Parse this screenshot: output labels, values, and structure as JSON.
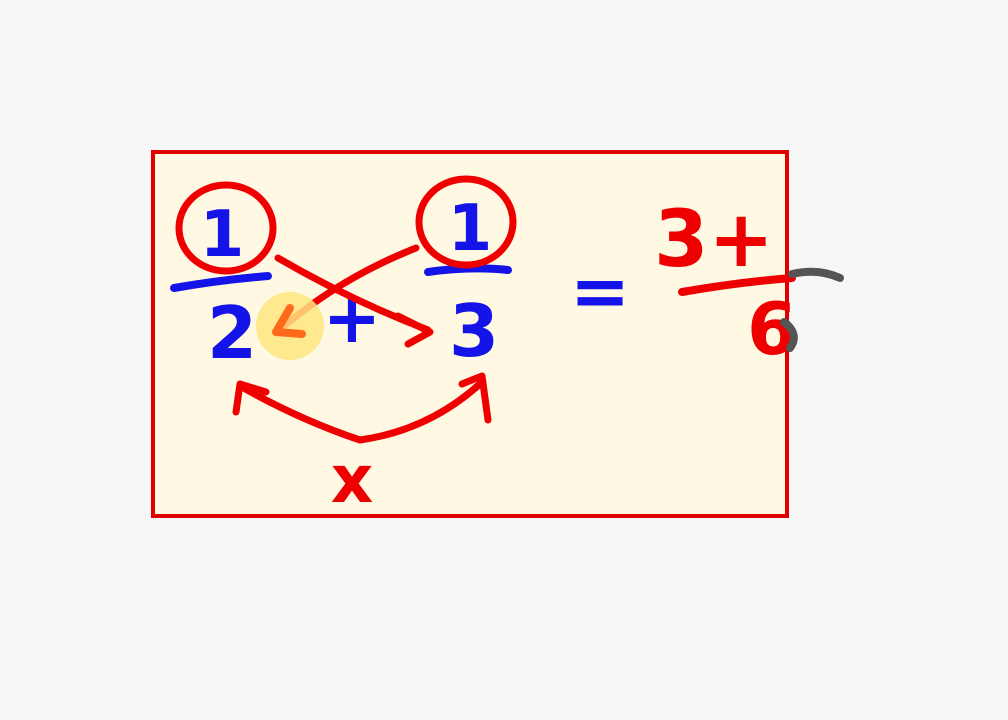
{
  "colors": {
    "page_background": "#f7f7f7",
    "box_fill": "#fff9e3",
    "box_border": "#e00000",
    "red_ink": "#ee0000",
    "blue_ink": "#1414e8",
    "grey_ink": "#555555",
    "cursor_highlight": "#ffe680",
    "cursor_arrow": "#ff6a1a"
  },
  "equation": {
    "left_fraction": {
      "numerator": "1",
      "denominator": "2"
    },
    "operator": "+",
    "right_fraction": {
      "numerator": "1",
      "denominator": "3"
    },
    "equals": "=",
    "result": {
      "numerator": "3+",
      "denominator": "6"
    },
    "multiply_mark": "x"
  },
  "annotations": {
    "circled_numerators": true,
    "cross_arrows": true,
    "denominator_arc_arrow": true
  }
}
